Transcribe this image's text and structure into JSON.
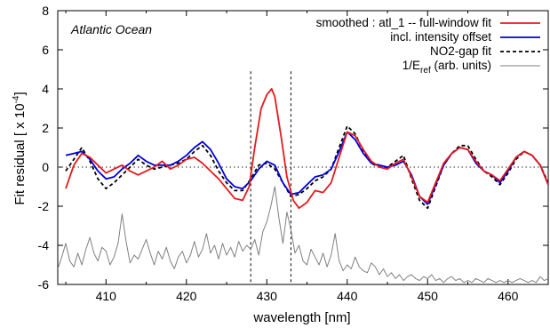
{
  "chart_data": {
    "type": "line",
    "annotation": "Atlantic Ocean",
    "xlabel": "wavelength  [nm]",
    "ylabel_main": "Fit residual  [ x 10",
    "ylabel_exp": "-4",
    "ylabel_close": "]",
    "xlim": [
      404,
      465
    ],
    "ylim": [
      -6,
      8
    ],
    "xticks": [
      410,
      420,
      430,
      440,
      450,
      460
    ],
    "yticks": [
      -6,
      -4,
      -2,
      0,
      2,
      4,
      6,
      8
    ],
    "zero_line": 0,
    "vlines": [
      428,
      433
    ],
    "legend_position": "top-right",
    "series": [
      {
        "name": "smoothed : atl_1  --  full-window fit",
        "color": "#e41a1c",
        "style": "solid",
        "points": [
          [
            405,
            -1.1
          ],
          [
            406,
            0.1
          ],
          [
            407,
            0.7
          ],
          [
            408,
            0.5
          ],
          [
            409,
            0.1
          ],
          [
            410,
            -0.3
          ],
          [
            411,
            -0.1
          ],
          [
            412,
            0.1
          ],
          [
            413,
            -0.2
          ],
          [
            414,
            -0.4
          ],
          [
            415,
            -0.2
          ],
          [
            416,
            0.0
          ],
          [
            417,
            0.3
          ],
          [
            418,
            -0.1
          ],
          [
            419,
            0.1
          ],
          [
            420,
            0.4
          ],
          [
            421,
            0.5
          ],
          [
            422,
            0.2
          ],
          [
            423,
            -0.2
          ],
          [
            424,
            -0.6
          ],
          [
            425,
            -1.1
          ],
          [
            426,
            -1.6
          ],
          [
            427,
            -1.7
          ],
          [
            427.8,
            -1.0
          ],
          [
            428.5,
            1.0
          ],
          [
            429.3,
            3.0
          ],
          [
            430,
            3.7
          ],
          [
            430.6,
            4.0
          ],
          [
            431,
            3.6
          ],
          [
            431.8,
            1.5
          ],
          [
            432.5,
            -0.5
          ],
          [
            433.3,
            -1.7
          ],
          [
            434,
            -2.1
          ],
          [
            435,
            -1.8
          ],
          [
            436,
            -1.2
          ],
          [
            437,
            -1.3
          ],
          [
            438,
            -0.8
          ],
          [
            439,
            0.5
          ],
          [
            440,
            1.8
          ],
          [
            441,
            1.6
          ],
          [
            442,
            0.9
          ],
          [
            443,
            0.3
          ],
          [
            444,
            0.0
          ],
          [
            445,
            -0.1
          ],
          [
            446,
            0.2
          ],
          [
            447,
            0.4
          ],
          [
            448,
            -0.5
          ],
          [
            449,
            -1.5
          ],
          [
            450,
            -1.8
          ],
          [
            451,
            -0.8
          ],
          [
            452,
            0.2
          ],
          [
            453,
            0.7
          ],
          [
            454,
            1.0
          ],
          [
            455,
            0.9
          ],
          [
            456,
            0.3
          ],
          [
            457,
            -0.2
          ],
          [
            458,
            -0.4
          ],
          [
            459,
            -0.7
          ],
          [
            460,
            -0.1
          ],
          [
            461,
            0.5
          ],
          [
            462,
            0.8
          ],
          [
            463,
            0.6
          ],
          [
            464,
            0.1
          ],
          [
            465,
            -0.9
          ]
        ]
      },
      {
        "name": "incl. intensity offset",
        "color": "#0000dd",
        "style": "solid",
        "points": [
          [
            405,
            0.6
          ],
          [
            406,
            0.7
          ],
          [
            407,
            0.8
          ],
          [
            408,
            0.4
          ],
          [
            409,
            -0.2
          ],
          [
            410,
            -0.6
          ],
          [
            411,
            -0.5
          ],
          [
            412,
            -0.1
          ],
          [
            413,
            0.2
          ],
          [
            414,
            0.6
          ],
          [
            415,
            0.3
          ],
          [
            416,
            0.1
          ],
          [
            417,
            0.1
          ],
          [
            418,
            0.1
          ],
          [
            419,
            0.3
          ],
          [
            420,
            0.6
          ],
          [
            421,
            1.0
          ],
          [
            422,
            1.3
          ],
          [
            423,
            0.9
          ],
          [
            424,
            0.2
          ],
          [
            425,
            -0.6
          ],
          [
            426,
            -1.0
          ],
          [
            427,
            -1.1
          ],
          [
            428,
            -0.7
          ],
          [
            429,
            -0.1
          ],
          [
            430,
            0.3
          ],
          [
            431,
            0.1
          ],
          [
            432,
            -0.8
          ],
          [
            433,
            -1.4
          ],
          [
            434,
            -1.3
          ],
          [
            435,
            -0.9
          ],
          [
            436,
            -0.5
          ],
          [
            437,
            -0.4
          ],
          [
            438,
            -0.1
          ],
          [
            439,
            0.8
          ],
          [
            440,
            1.8
          ],
          [
            441,
            1.4
          ],
          [
            442,
            0.7
          ],
          [
            443,
            0.2
          ],
          [
            444,
            0.1
          ],
          [
            445,
            0.0
          ],
          [
            446,
            0.1
          ],
          [
            447,
            0.3
          ],
          [
            448,
            -0.4
          ],
          [
            449,
            -1.5
          ],
          [
            450,
            -1.9
          ],
          [
            451,
            -0.9
          ],
          [
            452,
            0.1
          ],
          [
            453,
            0.7
          ],
          [
            454,
            1.0
          ],
          [
            455,
            0.9
          ],
          [
            456,
            0.2
          ],
          [
            457,
            -0.2
          ],
          [
            458,
            -0.4
          ],
          [
            459,
            -0.8
          ],
          [
            460,
            -0.2
          ],
          [
            461,
            0.5
          ],
          [
            462,
            0.8
          ],
          [
            463,
            0.6
          ],
          [
            464,
            0.1
          ],
          [
            465,
            -0.9
          ]
        ]
      },
      {
        "name": "NO2-gap fit",
        "color": "#000000",
        "style": "dashed",
        "points": [
          [
            405,
            -0.2
          ],
          [
            406,
            0.4
          ],
          [
            407,
            1.0
          ],
          [
            408,
            0.3
          ],
          [
            409,
            -0.6
          ],
          [
            410,
            -1.1
          ],
          [
            411,
            -0.8
          ],
          [
            412,
            -0.4
          ],
          [
            413,
            0.0
          ],
          [
            414,
            0.4
          ],
          [
            415,
            0.1
          ],
          [
            416,
            -0.1
          ],
          [
            417,
            0.0
          ],
          [
            418,
            0.1
          ],
          [
            419,
            0.2
          ],
          [
            420,
            0.4
          ],
          [
            421,
            0.8
          ],
          [
            422,
            1.1
          ],
          [
            423,
            0.6
          ],
          [
            424,
            -0.2
          ],
          [
            425,
            -0.8
          ],
          [
            426,
            -1.2
          ],
          [
            427,
            -1.2
          ],
          [
            428,
            -0.6
          ],
          [
            429,
            0.1
          ],
          [
            430,
            0.2
          ],
          [
            431,
            -0.1
          ],
          [
            432,
            -0.8
          ],
          [
            433,
            -1.5
          ],
          [
            434,
            -1.4
          ],
          [
            435,
            -1.1
          ],
          [
            436,
            -0.7
          ],
          [
            437,
            -0.5
          ],
          [
            438,
            -0.1
          ],
          [
            439,
            1.0
          ],
          [
            440,
            2.1
          ],
          [
            441,
            1.7
          ],
          [
            442,
            0.8
          ],
          [
            443,
            0.2
          ],
          [
            444,
            0.0
          ],
          [
            445,
            0.0
          ],
          [
            446,
            0.3
          ],
          [
            447,
            0.6
          ],
          [
            448,
            -0.6
          ],
          [
            449,
            -1.7
          ],
          [
            450,
            -2.1
          ],
          [
            451,
            -1.0
          ],
          [
            452,
            0.1
          ],
          [
            453,
            0.7
          ],
          [
            454,
            1.1
          ],
          [
            455,
            1.1
          ],
          [
            456,
            0.4
          ],
          [
            457,
            -0.2
          ],
          [
            458,
            -0.5
          ],
          [
            459,
            -0.9
          ],
          [
            460,
            -0.3
          ],
          [
            461,
            0.4
          ],
          [
            462,
            0.8
          ],
          [
            463,
            0.6
          ],
          [
            464,
            0.1
          ],
          [
            465,
            -0.8
          ]
        ]
      },
      {
        "name": "1/E",
        "name_sub": "ref",
        "name_rest": " (arb. units)",
        "color": "#808080",
        "style": "solid",
        "points": [
          [
            404,
            -5.2
          ],
          [
            404.5,
            -4.6
          ],
          [
            405,
            -3.9
          ],
          [
            405.5,
            -4.8
          ],
          [
            406,
            -5.1
          ],
          [
            406.5,
            -4.4
          ],
          [
            407,
            -5.0
          ],
          [
            407.5,
            -4.2
          ],
          [
            408,
            -3.6
          ],
          [
            408.5,
            -4.4
          ],
          [
            409,
            -4.8
          ],
          [
            409.5,
            -4.1
          ],
          [
            410,
            -4.3
          ],
          [
            410.5,
            -5.0
          ],
          [
            411,
            -4.6
          ],
          [
            411.5,
            -3.9
          ],
          [
            412,
            -2.4
          ],
          [
            412.5,
            -3.8
          ],
          [
            413,
            -4.9
          ],
          [
            413.5,
            -4.5
          ],
          [
            414,
            -4.7
          ],
          [
            414.5,
            -4.2
          ],
          [
            415,
            -3.7
          ],
          [
            415.5,
            -4.4
          ],
          [
            416,
            -5.0
          ],
          [
            416.5,
            -4.3
          ],
          [
            417,
            -4.7
          ],
          [
            417.5,
            -4.1
          ],
          [
            418,
            -4.8
          ],
          [
            418.5,
            -5.2
          ],
          [
            419,
            -4.6
          ],
          [
            419.5,
            -4.3
          ],
          [
            420,
            -4.9
          ],
          [
            420.5,
            -4.5
          ],
          [
            421,
            -3.8
          ],
          [
            421.5,
            -4.6
          ],
          [
            422,
            -4.2
          ],
          [
            422.5,
            -3.4
          ],
          [
            423,
            -4.4
          ],
          [
            423.5,
            -4.0
          ],
          [
            424,
            -4.7
          ],
          [
            424.5,
            -3.9
          ],
          [
            425,
            -4.5
          ],
          [
            425.5,
            -4.1
          ],
          [
            426,
            -4.6
          ],
          [
            426.5,
            -3.8
          ],
          [
            427,
            -4.3
          ],
          [
            427.5,
            -4.0
          ],
          [
            428,
            -4.2
          ],
          [
            428.5,
            -3.7
          ],
          [
            429,
            -4.5
          ],
          [
            429.5,
            -3.3
          ],
          [
            430,
            -2.8
          ],
          [
            430.5,
            -2.0
          ],
          [
            431,
            -1.0
          ],
          [
            431.5,
            -2.6
          ],
          [
            432,
            -3.9
          ],
          [
            432.5,
            -2.3
          ],
          [
            433,
            -3.2
          ],
          [
            433.5,
            -4.4
          ],
          [
            434,
            -4.0
          ],
          [
            434.5,
            -4.8
          ],
          [
            435,
            -5.0
          ],
          [
            435.5,
            -4.2
          ],
          [
            436,
            -4.6
          ],
          [
            436.5,
            -5.0
          ],
          [
            437,
            -4.4
          ],
          [
            437.5,
            -5.1
          ],
          [
            438,
            -4.5
          ],
          [
            438.5,
            -3.4
          ],
          [
            439,
            -4.8
          ],
          [
            439.5,
            -5.3
          ],
          [
            440,
            -5.0
          ],
          [
            440.5,
            -5.2
          ],
          [
            441,
            -4.6
          ],
          [
            441.5,
            -5.1
          ],
          [
            442,
            -5.3
          ],
          [
            442.5,
            -5.4
          ],
          [
            443,
            -4.9
          ],
          [
            443.5,
            -5.1
          ],
          [
            444,
            -5.5
          ],
          [
            444.5,
            -5.2
          ],
          [
            445,
            -5.6
          ],
          [
            445.5,
            -5.4
          ],
          [
            446,
            -5.7
          ],
          [
            446.5,
            -5.5
          ],
          [
            447,
            -5.8
          ],
          [
            447.5,
            -5.6
          ],
          [
            448,
            -5.5
          ],
          [
            448.5,
            -5.7
          ],
          [
            449,
            -5.8
          ],
          [
            449.5,
            -5.6
          ],
          [
            450,
            -5.7
          ],
          [
            450.5,
            -5.5
          ],
          [
            451,
            -5.8
          ],
          [
            451.5,
            -5.7
          ],
          [
            452,
            -5.9
          ],
          [
            452.5,
            -5.7
          ],
          [
            453,
            -5.6
          ],
          [
            453.5,
            -5.8
          ],
          [
            454,
            -5.7
          ],
          [
            454.5,
            -5.9
          ],
          [
            455,
            -5.8
          ],
          [
            455.5,
            -5.9
          ],
          [
            456,
            -5.7
          ],
          [
            456.5,
            -5.8
          ],
          [
            457,
            -5.9
          ],
          [
            457.5,
            -5.7
          ],
          [
            458,
            -5.8
          ],
          [
            458.5,
            -5.9
          ],
          [
            459,
            -5.8
          ],
          [
            459.5,
            -5.9
          ],
          [
            460,
            -5.8
          ],
          [
            460.5,
            -5.9
          ],
          [
            461,
            -5.8
          ],
          [
            461.5,
            -5.7
          ],
          [
            462,
            -5.8
          ],
          [
            462.5,
            -5.9
          ],
          [
            463,
            -5.8
          ],
          [
            463.5,
            -5.9
          ],
          [
            464,
            -5.6
          ],
          [
            464.5,
            -5.8
          ],
          [
            465,
            -5.7
          ]
        ]
      }
    ]
  }
}
